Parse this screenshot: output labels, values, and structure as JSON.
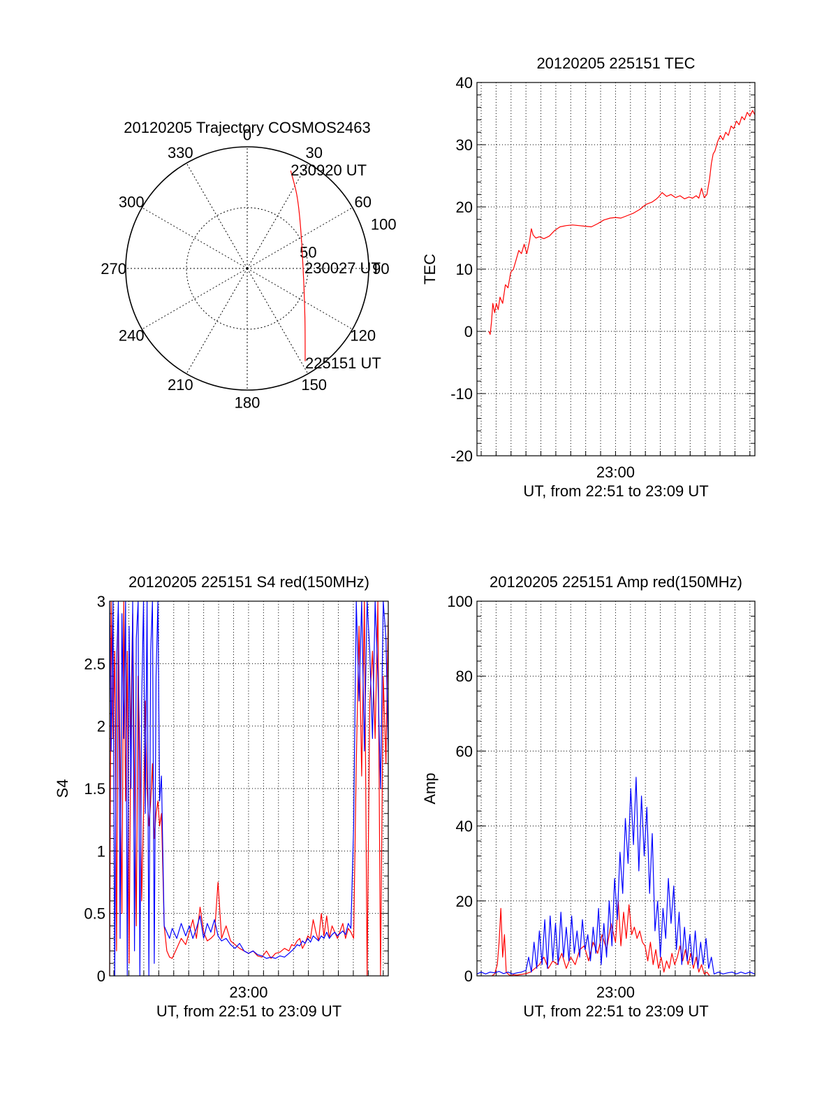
{
  "colors": {
    "background": "#ffffff",
    "axis": "#000000",
    "grid": "#000000",
    "red": "#ff0000",
    "blue": "#0000ff"
  },
  "chart_data": [
    {
      "id": "trajectory",
      "type": "polar",
      "title": "20120205 Trajectory COSMOS2463",
      "angle_labels": [
        "0",
        "30",
        "60",
        "90",
        "120",
        "150",
        "180",
        "210",
        "240",
        "270",
        "300",
        "330"
      ],
      "radial_labels": [
        "50",
        "100"
      ],
      "radial_range": [
        0,
        100
      ],
      "grid": true,
      "series": [
        {
          "color": "#ff0000",
          "points": [
            {
              "azimuth": 24,
              "r": 88
            },
            {
              "azimuth": 34,
              "r": 73
            },
            {
              "azimuth": 50,
              "r": 57
            },
            {
              "azimuth": 90,
              "r": 46
            },
            {
              "azimuth": 130,
              "r": 62
            },
            {
              "azimuth": 148,
              "r": 90
            }
          ]
        }
      ],
      "annotations": [
        {
          "text": "230920 UT",
          "azimuth": 24,
          "r": 88
        },
        {
          "text": "230027 UT",
          "azimuth": 90,
          "r": 46
        },
        {
          "text": "225151 UT",
          "azimuth": 148,
          "r": 90
        }
      ]
    },
    {
      "id": "tec",
      "type": "line",
      "title": "20120205 225151 TEC",
      "ylabel": "TEC",
      "xlabel": "UT, from 22:51 to 23:09 UT",
      "x_tick_label": "23:00",
      "x_tick_value": 23.0,
      "xlim": [
        22.8453,
        23.1556
      ],
      "ylim": [
        -20,
        40
      ],
      "y_ticks": [
        -20,
        -10,
        0,
        10,
        20,
        30,
        40
      ],
      "grid": true,
      "series": [
        {
          "color": "#ff0000",
          "x": [
            22.8586,
            22.86,
            22.8615,
            22.863,
            22.865,
            22.867,
            22.869,
            22.871,
            22.874,
            22.877,
            22.88,
            22.883,
            22.886,
            22.889,
            22.892,
            22.895,
            22.898,
            22.901,
            22.904,
            22.906,
            22.908,
            22.911,
            22.915,
            22.92,
            22.926,
            22.932,
            22.938,
            22.945,
            22.952,
            22.959,
            22.966,
            22.973,
            22.98,
            22.987,
            22.994,
            23.0,
            23.006,
            23.013,
            23.02,
            23.027,
            23.034,
            23.041,
            23.045,
            23.048,
            23.052,
            23.057,
            23.062,
            23.067,
            23.072,
            23.077,
            23.082,
            23.086,
            23.09,
            23.093,
            23.096,
            23.099,
            23.102,
            23.105,
            23.107,
            23.109,
            23.111,
            23.114,
            23.117,
            23.12,
            23.123,
            23.126,
            23.129,
            23.132,
            23.135,
            23.138,
            23.141,
            23.144,
            23.147,
            23.15,
            23.153,
            23.1556
          ],
          "values": [
            0.0,
            -0.5,
            1.5,
            4.5,
            3.0,
            4.5,
            3.5,
            5.5,
            4.5,
            7.5,
            7.0,
            9.5,
            10.0,
            11.5,
            13.0,
            12.5,
            14.0,
            12.5,
            14.5,
            16.5,
            15.5,
            15.0,
            15.2,
            14.9,
            15.3,
            16.2,
            16.8,
            17.0,
            17.1,
            17.0,
            16.9,
            16.8,
            17.3,
            17.9,
            18.2,
            18.3,
            18.2,
            18.6,
            19.0,
            19.6,
            20.4,
            20.8,
            21.2,
            21.6,
            22.3,
            21.7,
            22.0,
            21.5,
            21.8,
            21.3,
            21.6,
            21.4,
            21.8,
            21.4,
            23.0,
            21.5,
            22.0,
            24.5,
            27.0,
            28.5,
            29.0,
            30.5,
            31.5,
            30.8,
            32.0,
            31.5,
            33.0,
            32.6,
            33.8,
            33.2,
            34.5,
            34.0,
            35.2,
            34.6,
            35.5,
            34.8
          ]
        }
      ]
    },
    {
      "id": "s4",
      "type": "line",
      "title": "20120205 225151 S4 red(150MHz)",
      "ylabel": "S4",
      "xlabel": "UT, from 22:51 to 23:09 UT",
      "x_tick_label": "23:00",
      "x_tick_value": 23.0,
      "xlim": [
        22.8453,
        23.1556
      ],
      "ylim": [
        0,
        3
      ],
      "y_ticks": [
        0,
        0.5,
        1,
        1.5,
        2,
        2.5,
        3
      ],
      "y_tick_labels": [
        "0",
        "0.5",
        "1",
        "1.5",
        "2",
        "2.5",
        "3"
      ],
      "grid": true,
      "series": [
        {
          "color": "#ff0000",
          "x": [
            22.8453,
            22.847,
            22.849,
            22.851,
            22.853,
            22.855,
            22.857,
            22.859,
            22.861,
            22.863,
            22.865,
            22.867,
            22.869,
            22.871,
            22.873,
            22.875,
            22.877,
            22.879,
            22.881,
            22.883,
            22.885,
            22.887,
            22.889,
            22.891,
            22.893,
            22.895,
            22.897,
            22.899,
            22.901,
            22.903,
            22.906,
            22.909,
            22.912,
            22.915,
            22.92,
            22.925,
            22.93,
            22.934,
            22.938,
            22.942,
            22.946,
            22.95,
            22.954,
            22.958,
            22.962,
            22.966,
            22.97,
            22.975,
            22.98,
            22.985,
            22.99,
            22.995,
            23.0,
            23.005,
            23.01,
            23.015,
            23.02,
            23.025,
            23.03,
            23.035,
            23.04,
            23.045,
            23.048,
            23.051,
            23.054,
            23.057,
            23.06,
            23.063,
            23.066,
            23.069,
            23.072,
            23.075,
            23.078,
            23.081,
            23.084,
            23.087,
            23.09,
            23.093,
            23.096,
            23.099,
            23.102,
            23.105,
            23.108,
            23.111,
            23.114,
            23.117,
            23.12,
            23.123,
            23.126,
            23.129,
            23.132,
            23.135,
            23.138,
            23.141,
            23.144,
            23.147,
            23.15,
            23.153,
            23.1556
          ],
          "values": [
            0,
            3,
            1.9,
            2.6,
            0.2,
            2.9,
            1.7,
            0.5,
            3,
            1.4,
            2.6,
            0.1,
            2.1,
            2.9,
            1.6,
            0.4,
            2.4,
            1.8,
            0.6,
            1.3,
            2.2,
            1.5,
            1.2,
            1.4,
            1.7,
            1.1,
            1.3,
            1.4,
            1.2,
            1.3,
            0.4,
            0.2,
            0.15,
            0.14,
            0.22,
            0.3,
            0.25,
            0.35,
            0.45,
            0.3,
            0.55,
            0.35,
            0.28,
            0.3,
            0.33,
            0.75,
            0.3,
            0.4,
            0.28,
            0.25,
            0.22,
            0.2,
            0.18,
            0.2,
            0.16,
            0.15,
            0.2,
            0.14,
            0.18,
            0.19,
            0.22,
            0.2,
            0.25,
            0.24,
            0.28,
            0.3,
            0.22,
            0.26,
            0.32,
            0.3,
            0.45,
            0.35,
            0.28,
            0.5,
            0.32,
            0.48,
            0.3,
            0.4,
            0.35,
            0.3,
            0.36,
            0.42,
            0.3,
            0.38,
            0.35,
            0.3,
            1.7,
            2.8,
            1.6,
            3,
            0,
            2.2,
            2.6,
            1.9,
            3,
            0,
            2.4,
            1.7,
            2.9
          ]
        },
        {
          "color": "#0000ff",
          "x": [
            22.8453,
            22.847,
            22.849,
            22.851,
            22.853,
            22.855,
            22.857,
            22.859,
            22.861,
            22.863,
            22.865,
            22.867,
            22.869,
            22.871,
            22.873,
            22.875,
            22.877,
            22.879,
            22.881,
            22.883,
            22.885,
            22.887,
            22.889,
            22.891,
            22.893,
            22.895,
            22.897,
            22.899,
            22.901,
            22.903,
            22.906,
            22.909,
            22.912,
            22.915,
            22.92,
            22.925,
            22.93,
            22.934,
            22.938,
            22.942,
            22.946,
            22.95,
            22.954,
            22.958,
            22.962,
            22.966,
            22.97,
            22.975,
            22.98,
            22.985,
            22.99,
            22.995,
            23.0,
            23.005,
            23.01,
            23.015,
            23.02,
            23.025,
            23.03,
            23.035,
            23.04,
            23.045,
            23.048,
            23.051,
            23.054,
            23.057,
            23.06,
            23.063,
            23.066,
            23.069,
            23.072,
            23.075,
            23.078,
            23.081,
            23.084,
            23.087,
            23.09,
            23.093,
            23.096,
            23.099,
            23.102,
            23.105,
            23.108,
            23.111,
            23.114,
            23.117,
            23.12,
            23.123,
            23.126,
            23.129,
            23.132,
            23.135,
            23.138,
            23.141,
            23.144,
            23.147,
            23.15,
            23.153,
            23.1556
          ],
          "values": [
            3,
            1.8,
            3,
            0,
            2.5,
            3,
            0.3,
            2.9,
            1.9,
            3,
            0,
            2.8,
            1.5,
            3,
            0.2,
            2.7,
            3,
            0,
            2.2,
            3,
            1.3,
            3,
            0,
            2.6,
            3,
            0.1,
            2.4,
            3,
            1.4,
            1.6,
            0.4,
            0.35,
            0.3,
            0.38,
            0.3,
            0.42,
            0.32,
            0.4,
            0.3,
            0.38,
            0.48,
            0.3,
            0.42,
            0.35,
            0.45,
            0.32,
            0.28,
            0.3,
            0.25,
            0.22,
            0.26,
            0.2,
            0.18,
            0.2,
            0.17,
            0.16,
            0.14,
            0.15,
            0.14,
            0.16,
            0.15,
            0.18,
            0.2,
            0.22,
            0.25,
            0.24,
            0.28,
            0.26,
            0.3,
            0.27,
            0.32,
            0.3,
            0.28,
            0.32,
            0.3,
            0.35,
            0.3,
            0.33,
            0.35,
            0.32,
            0.34,
            0.36,
            0.33,
            0.42,
            0.38,
            1.2,
            3,
            2.2,
            3,
            1.8,
            3,
            2.6,
            1.9,
            3,
            2.4,
            1.5,
            3,
            2.7,
            1.8
          ]
        }
      ]
    },
    {
      "id": "amp",
      "type": "line",
      "title": "20120205 225151 Amp red(150MHz)",
      "ylabel": "Amp",
      "xlabel": "UT, from 22:51 to 23:09 UT",
      "x_tick_label": "23:00",
      "x_tick_value": 23.0,
      "xlim": [
        22.8453,
        23.1556
      ],
      "ylim": [
        0,
        100
      ],
      "y_ticks": [
        0,
        20,
        40,
        60,
        80,
        100
      ],
      "grid": true,
      "series": [
        {
          "color": "#ff0000",
          "x": [
            22.862,
            22.865,
            22.868,
            22.87,
            22.872,
            22.874,
            22.876,
            22.878,
            22.88,
            22.883,
            22.886,
            22.89,
            22.895,
            22.9,
            22.905,
            22.91,
            22.915,
            22.92,
            22.925,
            22.93,
            22.935,
            22.94,
            22.945,
            22.95,
            22.955,
            22.96,
            22.965,
            22.97,
            22.975,
            22.98,
            22.985,
            22.99,
            22.995,
            23.0,
            23.003,
            23.006,
            23.009,
            23.012,
            23.015,
            23.018,
            23.021,
            23.024,
            23.027,
            23.03,
            23.033,
            23.036,
            23.039,
            23.042,
            23.045,
            23.048,
            23.051,
            23.054,
            23.057,
            23.06,
            23.063,
            23.066,
            23.069,
            23.072,
            23.075,
            23.078,
            23.081,
            23.084,
            23.087,
            23.09,
            23.093,
            23.096,
            23.099,
            23.102,
            23.105
          ],
          "values": [
            0,
            0.5,
            3,
            9,
            18,
            5,
            11,
            1,
            0.5,
            0,
            0.3,
            0.2,
            0.4,
            0.6,
            1,
            2,
            3,
            5,
            2,
            4,
            3,
            6,
            2,
            5,
            3,
            7,
            8,
            4,
            9,
            6,
            11,
            7,
            14,
            9,
            20,
            8,
            17,
            10,
            19,
            11,
            13,
            10,
            12,
            9,
            8,
            4,
            9,
            3,
            7,
            2,
            5,
            1,
            4,
            2,
            6,
            3,
            5,
            8,
            4,
            7,
            3,
            6,
            2,
            5,
            1,
            3,
            0.5,
            1,
            0
          ]
        },
        {
          "color": "#0000ff",
          "x": [
            22.8453,
            22.85,
            22.855,
            22.86,
            22.865,
            22.87,
            22.875,
            22.88,
            22.885,
            22.89,
            22.895,
            22.9,
            22.903,
            22.906,
            22.909,
            22.912,
            22.915,
            22.918,
            22.921,
            22.924,
            22.927,
            22.93,
            22.933,
            22.936,
            22.939,
            22.942,
            22.945,
            22.948,
            22.951,
            22.954,
            22.957,
            22.96,
            22.963,
            22.966,
            22.969,
            22.972,
            22.975,
            22.978,
            22.981,
            22.984,
            22.987,
            22.99,
            22.993,
            22.996,
            22.999,
            23.002,
            23.005,
            23.008,
            23.011,
            23.014,
            23.017,
            23.02,
            23.023,
            23.026,
            23.029,
            23.032,
            23.035,
            23.038,
            23.041,
            23.044,
            23.047,
            23.05,
            23.053,
            23.056,
            23.059,
            23.062,
            23.065,
            23.068,
            23.071,
            23.074,
            23.077,
            23.08,
            23.083,
            23.086,
            23.089,
            23.092,
            23.095,
            23.098,
            23.101,
            23.104,
            23.107,
            23.11,
            23.115,
            23.12,
            23.125,
            23.13,
            23.135,
            23.14,
            23.145,
            23.15,
            23.1556
          ],
          "values": [
            0.5,
            1,
            0.5,
            1,
            0.8,
            1.2,
            0.6,
            1,
            0.5,
            0.8,
            1,
            1.5,
            5,
            1,
            9,
            2,
            12,
            3,
            15,
            2,
            16,
            4,
            14,
            3,
            17,
            5,
            13,
            4,
            16,
            6,
            12,
            5,
            15,
            7,
            11,
            4,
            13,
            6,
            18,
            3,
            14,
            5,
            20,
            8,
            26,
            15,
            33,
            22,
            42,
            30,
            50,
            35,
            53,
            28,
            48,
            32,
            45,
            22,
            38,
            12,
            20,
            5,
            18,
            10,
            26,
            14,
            24,
            7,
            17,
            3,
            13,
            4,
            11,
            3,
            12,
            2,
            9,
            3,
            10,
            2,
            5,
            0.5,
            1,
            0.5,
            0.8,
            1,
            0.5,
            1,
            0.6,
            1,
            0.5
          ]
        }
      ]
    }
  ]
}
